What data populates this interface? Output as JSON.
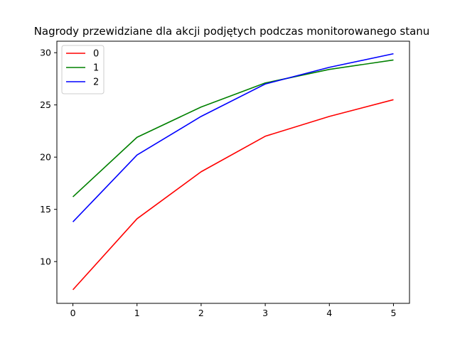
{
  "chart_data": {
    "type": "line",
    "title": "Nagrody przewidziane dla akcji podjętych podczas monitorowanego stanu",
    "xlabel": "",
    "ylabel": "",
    "x": [
      0,
      1,
      2,
      3,
      4,
      5
    ],
    "x_ticks": [
      "0",
      "1",
      "2",
      "3",
      "4",
      "5"
    ],
    "y_ticks": [
      "10",
      "15",
      "20",
      "25",
      "30"
    ],
    "xlim": [
      -0.25,
      5.25
    ],
    "ylim": [
      6.0,
      31.1
    ],
    "grid": false,
    "legend_position": "top-left",
    "series": [
      {
        "name": "0",
        "color": "#ff0000",
        "values": [
          7.3,
          14.1,
          18.6,
          22.0,
          23.9,
          25.5
        ]
      },
      {
        "name": "1",
        "color": "#008000",
        "values": [
          16.2,
          21.9,
          24.8,
          27.1,
          28.4,
          29.3
        ]
      },
      {
        "name": "2",
        "color": "#0000ff",
        "values": [
          13.8,
          20.2,
          23.9,
          27.0,
          28.6,
          29.9
        ]
      }
    ]
  }
}
